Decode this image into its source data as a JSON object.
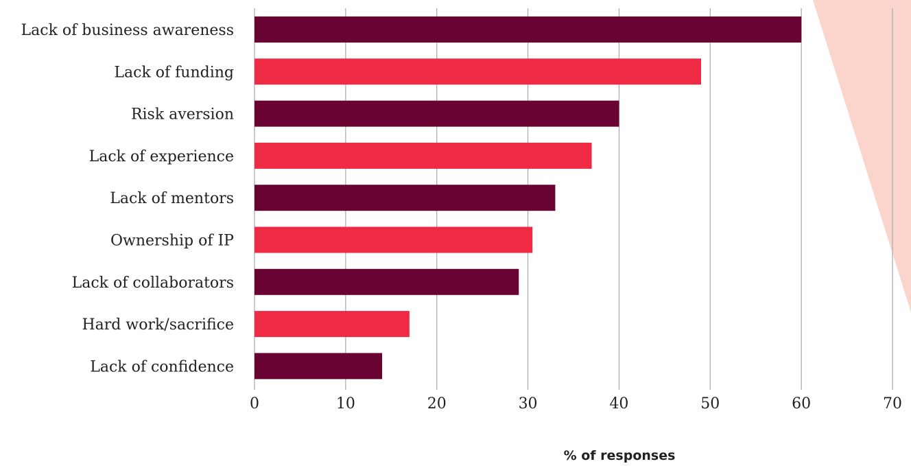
{
  "chart_data": {
    "type": "bar",
    "orientation": "horizontal",
    "categories": [
      "Lack of business awareness",
      "Lack of funding",
      "Risk aversion",
      "Lack of experience",
      "Lack of mentors",
      "Ownership of IP",
      "Lack of collaborators",
      "Hard work/sacrifice",
      "Lack of confidence"
    ],
    "values": [
      60,
      49,
      40,
      37,
      33,
      30.5,
      29,
      17,
      14
    ],
    "bar_colors": [
      "#690332",
      "#ee2a44",
      "#690332",
      "#ee2a44",
      "#690332",
      "#ee2a44",
      "#690332",
      "#ee2a44",
      "#690332"
    ],
    "xlim": [
      0,
      70
    ],
    "xticks": [
      0,
      10,
      20,
      30,
      40,
      50,
      60,
      70
    ],
    "xlabel": "% of responses",
    "grid": true,
    "accent_shape_color": "#fbd5cb"
  }
}
